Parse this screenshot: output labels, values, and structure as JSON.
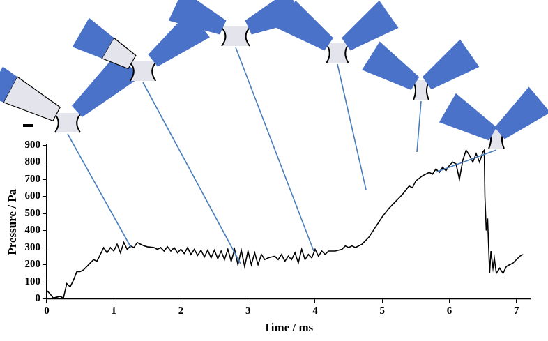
{
  "chart_data": {
    "type": "line",
    "x_label": "Time / ms",
    "y_label": "Pressure / Pa",
    "x": [
      0,
      0.05,
      0.1,
      0.15,
      0.2,
      0.25,
      0.3,
      0.35,
      0.4,
      0.45,
      0.5,
      0.55,
      0.6,
      0.65,
      0.7,
      0.75,
      0.8,
      0.85,
      0.9,
      0.95,
      1.0,
      1.05,
      1.1,
      1.15,
      1.2,
      1.25,
      1.3,
      1.35,
      1.4,
      1.45,
      1.5,
      1.6,
      1.65,
      1.7,
      1.75,
      1.8,
      1.85,
      1.9,
      1.95,
      2.0,
      2.05,
      2.1,
      2.15,
      2.2,
      2.25,
      2.3,
      2.35,
      2.4,
      2.45,
      2.5,
      2.55,
      2.6,
      2.65,
      2.7,
      2.75,
      2.8,
      2.85,
      2.9,
      2.95,
      3.0,
      3.05,
      3.1,
      3.15,
      3.2,
      3.25,
      3.3,
      3.4,
      3.45,
      3.5,
      3.55,
      3.6,
      3.65,
      3.7,
      3.75,
      3.8,
      3.85,
      3.9,
      3.95,
      4.0,
      4.05,
      4.1,
      4.15,
      4.2,
      4.3,
      4.4,
      4.45,
      4.5,
      4.55,
      4.6,
      4.7,
      4.8,
      4.9,
      5.0,
      5.1,
      5.2,
      5.3,
      5.4,
      5.45,
      5.5,
      5.6,
      5.7,
      5.75,
      5.8,
      5.85,
      5.9,
      5.95,
      6.0,
      6.05,
      6.1,
      6.15,
      6.2,
      6.25,
      6.3,
      6.35,
      6.4,
      6.45,
      6.5,
      6.52,
      6.53,
      6.55,
      6.57,
      6.6,
      6.62,
      6.65,
      6.67,
      6.7,
      6.75,
      6.8,
      6.85,
      6.9,
      6.95,
      7.0,
      7.05,
      7.1
    ],
    "values": [
      50,
      30,
      5,
      10,
      15,
      5,
      90,
      70,
      110,
      160,
      160,
      170,
      190,
      210,
      230,
      220,
      260,
      300,
      270,
      300,
      280,
      320,
      270,
      330,
      290,
      310,
      300,
      330,
      320,
      310,
      305,
      300,
      290,
      300,
      280,
      305,
      280,
      300,
      270,
      290,
      265,
      300,
      260,
      290,
      255,
      285,
      245,
      285,
      240,
      285,
      235,
      280,
      230,
      290,
      220,
      290,
      200,
      285,
      190,
      280,
      200,
      270,
      200,
      260,
      230,
      240,
      250,
      230,
      260,
      220,
      250,
      230,
      270,
      210,
      290,
      230,
      260,
      240,
      290,
      250,
      280,
      260,
      280,
      280,
      290,
      310,
      300,
      310,
      300,
      320,
      360,
      420,
      480,
      530,
      570,
      610,
      660,
      650,
      690,
      720,
      740,
      730,
      760,
      740,
      770,
      750,
      780,
      800,
      790,
      700,
      810,
      870,
      840,
      800,
      850,
      800,
      860,
      870,
      600,
      400,
      470,
      150,
      280,
      180,
      240,
      150,
      180,
      150,
      190,
      200,
      210,
      230,
      250,
      260
    ],
    "color": "#000000",
    "xlim": [
      0,
      7.2
    ],
    "xticks": [
      0,
      1,
      2,
      3,
      4,
      5,
      6,
      7
    ],
    "ylim": [
      0,
      900
    ],
    "yticks": [
      0,
      100,
      200,
      300,
      400,
      500,
      600,
      700,
      800,
      900
    ],
    "grid": false
  }
}
